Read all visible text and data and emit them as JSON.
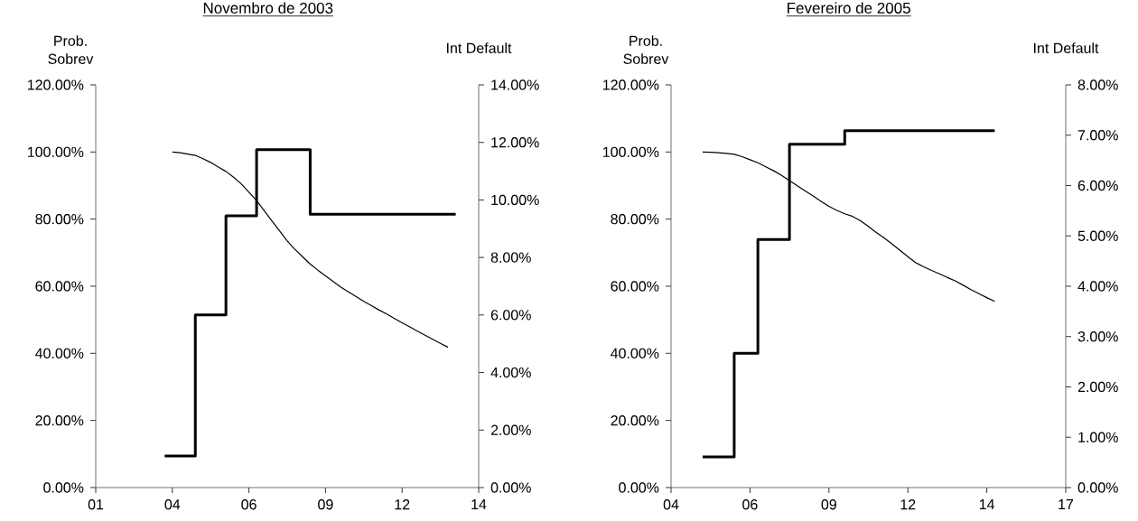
{
  "chart_data": [
    {
      "type": "line",
      "title": "Novembro de 2003",
      "ylabel": "Prob. Sobrev",
      "y2label": "Int Default",
      "categories": [
        "01",
        null,
        null,
        null,
        null,
        null,
        null,
        null,
        null,
        null,
        "04",
        null,
        null,
        null,
        null,
        null,
        null,
        null,
        null,
        null,
        "06",
        null,
        null,
        null,
        null,
        null,
        null,
        null,
        null,
        null,
        "09",
        null,
        null,
        null,
        null,
        null,
        null,
        null,
        null,
        null,
        "12",
        null,
        null,
        null,
        null,
        null,
        null,
        null,
        null,
        null,
        "14"
      ],
      "ylim": [
        0,
        120
      ],
      "yticks": [
        {
          "value": 0,
          "label": "0.00%"
        },
        {
          "value": 20,
          "label": "20.00%"
        },
        {
          "value": 40,
          "label": "40.00%"
        },
        {
          "value": 60,
          "label": "60.00%"
        },
        {
          "value": 80,
          "label": "80.00%"
        },
        {
          "value": 100,
          "label": "100.00%"
        },
        {
          "value": 120,
          "label": "120.00%"
        }
      ],
      "y2lim": [
        0,
        14
      ],
      "y2ticks": [
        {
          "value": 0,
          "label": "0.00%"
        },
        {
          "value": 2,
          "label": "2.00%"
        },
        {
          "value": 4,
          "label": "4.00%"
        },
        {
          "value": 6,
          "label": "6.00%"
        },
        {
          "value": 8,
          "label": "8.00%"
        },
        {
          "value": 10,
          "label": "10.00%"
        },
        {
          "value": 12,
          "label": "12.00%"
        },
        {
          "value": 14,
          "label": "14.00%"
        }
      ],
      "series": [
        {
          "color": "#000000",
          "values": [
            null,
            null,
            null,
            null,
            null,
            null,
            null,
            null,
            null,
            null,
            100,
            99.8,
            99.4,
            99,
            98,
            96.9,
            95.5,
            94.2,
            92.5,
            90.5,
            88,
            85.5,
            82.5,
            79.5,
            76.5,
            73.5,
            71,
            68.8,
            66.6,
            64.8,
            63.1,
            61.4,
            59.7,
            58.3,
            56.9,
            55.5,
            54.2,
            52.9,
            51.7,
            50.4,
            49.1,
            47.9,
            46.6,
            45.4,
            44.2,
            43,
            41.8,
            null,
            null,
            null,
            null
          ]
        },
        {
          "type": "step",
          "axis": "y2",
          "color": "#000000",
          "values": [
            null,
            null,
            null,
            null,
            null,
            null,
            null,
            null,
            null,
            1.1,
            1.1,
            1.1,
            1.1,
            6.0,
            6.0,
            6.0,
            6.0,
            9.45,
            9.45,
            9.45,
            9.45,
            11.75,
            11.75,
            11.75,
            11.75,
            11.75,
            11.75,
            11.75,
            9.5,
            9.5,
            9.5,
            9.5,
            9.5,
            9.5,
            9.5,
            9.5,
            9.5,
            9.5,
            9.5,
            9.5,
            9.5,
            9.5,
            9.5,
            9.5,
            9.5,
            9.5,
            9.5,
            9.5,
            null,
            null,
            null
          ]
        }
      ]
    },
    {
      "type": "line",
      "title": "Fevereiro de 2005",
      "ylabel": "Prob. Sobrev",
      "y2label": "Int Default",
      "categories": [
        "04",
        null,
        null,
        null,
        null,
        null,
        null,
        null,
        null,
        null,
        "06",
        null,
        null,
        null,
        null,
        null,
        null,
        null,
        null,
        null,
        "09",
        null,
        null,
        null,
        null,
        null,
        null,
        null,
        null,
        null,
        "12",
        null,
        null,
        null,
        null,
        null,
        null,
        null,
        null,
        null,
        "14",
        null,
        null,
        null,
        null,
        null,
        null,
        null,
        null,
        null,
        "17"
      ],
      "ylim": [
        0,
        120
      ],
      "yticks": [
        {
          "value": 0,
          "label": "0.00%"
        },
        {
          "value": 20,
          "label": "20.00%"
        },
        {
          "value": 40,
          "label": "40.00%"
        },
        {
          "value": 60,
          "label": "60.00%"
        },
        {
          "value": 80,
          "label": "80.00%"
        },
        {
          "value": 100,
          "label": "100.00%"
        },
        {
          "value": 120,
          "label": "120.00%"
        }
      ],
      "y2lim": [
        0,
        8
      ],
      "y2ticks": [
        {
          "value": 0,
          "label": "0.00%"
        },
        {
          "value": 1,
          "label": "1.00%"
        },
        {
          "value": 2,
          "label": "2.00%"
        },
        {
          "value": 3,
          "label": "3.00%"
        },
        {
          "value": 4,
          "label": "4.00%"
        },
        {
          "value": 5,
          "label": "5.00%"
        },
        {
          "value": 6,
          "label": "6.00%"
        },
        {
          "value": 7,
          "label": "7.00%"
        },
        {
          "value": 8,
          "label": "8.00%"
        }
      ],
      "series": [
        {
          "color": "#000000",
          "values": [
            null,
            null,
            null,
            null,
            100,
            99.9,
            99.8,
            99.6,
            99.3,
            98.6,
            97.7,
            96.8,
            95.6,
            94.4,
            93,
            91.5,
            89.9,
            88.4,
            86.9,
            85.3,
            83.8,
            82.6,
            81.6,
            80.8,
            79.5,
            77.8,
            76,
            74.4,
            72.6,
            70.7,
            68.8,
            67,
            65.8,
            64.7,
            63.7,
            62.6,
            61.6,
            60.3,
            59,
            57.8,
            56.6,
            55.5,
            null,
            null,
            null,
            null,
            null,
            null,
            null,
            null,
            null
          ]
        },
        {
          "type": "step",
          "axis": "y2",
          "color": "#000000",
          "values": [
            null,
            null,
            null,
            null,
            0.61,
            0.61,
            0.61,
            0.61,
            2.67,
            2.67,
            2.67,
            4.93,
            4.93,
            4.93,
            4.93,
            6.82,
            6.82,
            6.82,
            6.82,
            6.82,
            6.82,
            6.82,
            7.09,
            7.09,
            7.09,
            7.09,
            7.09,
            7.09,
            7.09,
            7.09,
            7.09,
            7.09,
            7.09,
            7.09,
            7.09,
            7.09,
            7.09,
            7.09,
            7.09,
            7.09,
            7.09,
            7.09,
            null,
            null,
            null,
            null,
            null,
            null,
            null,
            null,
            null
          ]
        }
      ]
    }
  ]
}
